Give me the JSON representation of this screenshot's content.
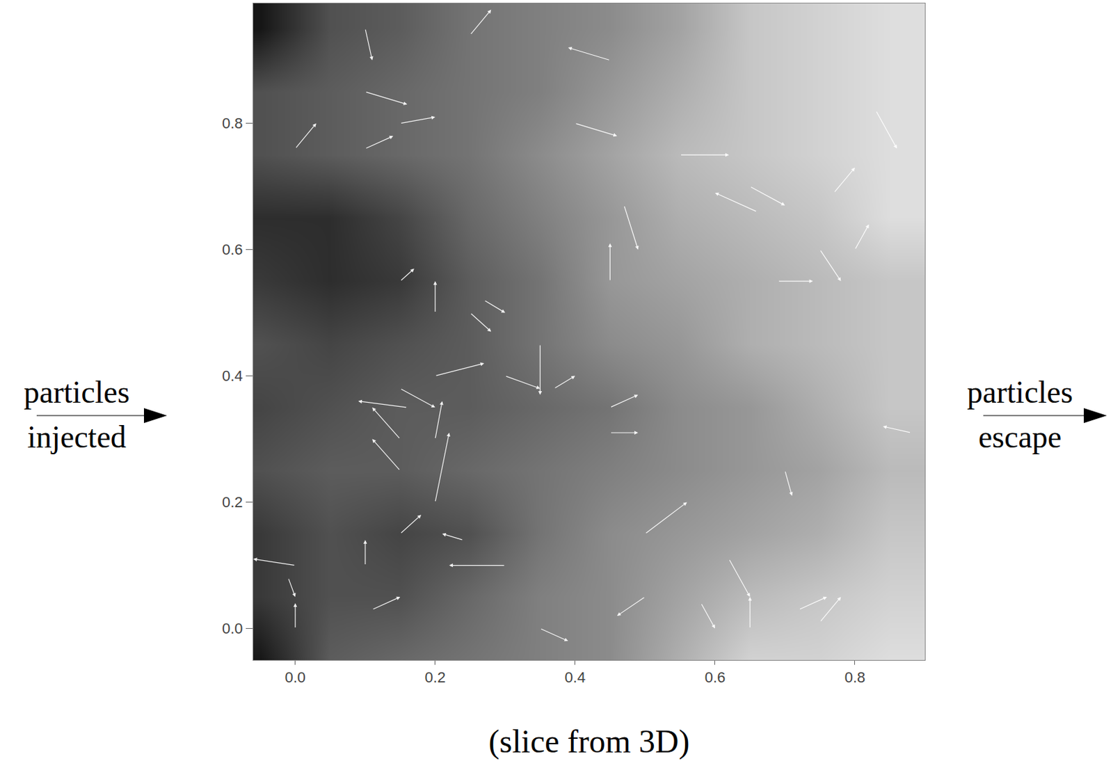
{
  "chart_data": {
    "type": "heatmap_quiver",
    "x": [
      -0.05,
      0.05,
      0.15,
      0.25,
      0.35,
      0.45,
      0.55,
      0.65,
      0.75,
      0.85
    ],
    "y": [
      -0.05,
      0.05,
      0.15,
      0.25,
      0.35,
      0.45,
      0.55,
      0.65,
      0.75,
      0.85,
      0.95
    ],
    "z": [
      [
        0.05,
        0.35,
        0.4,
        0.45,
        0.5,
        0.55,
        0.7,
        0.85,
        0.85,
        0.9
      ],
      [
        0.2,
        0.3,
        0.3,
        0.4,
        0.5,
        0.55,
        0.65,
        0.75,
        0.8,
        0.85
      ],
      [
        0.2,
        0.3,
        0.25,
        0.3,
        0.45,
        0.55,
        0.6,
        0.65,
        0.7,
        0.8
      ],
      [
        0.3,
        0.35,
        0.35,
        0.4,
        0.45,
        0.5,
        0.55,
        0.6,
        0.65,
        0.75
      ],
      [
        0.25,
        0.3,
        0.35,
        0.35,
        0.4,
        0.45,
        0.55,
        0.6,
        0.7,
        0.8
      ],
      [
        0.3,
        0.25,
        0.3,
        0.35,
        0.45,
        0.55,
        0.6,
        0.7,
        0.75,
        0.8
      ],
      [
        0.2,
        0.15,
        0.2,
        0.35,
        0.45,
        0.6,
        0.65,
        0.7,
        0.75,
        0.8
      ],
      [
        0.15,
        0.15,
        0.25,
        0.4,
        0.5,
        0.6,
        0.7,
        0.75,
        0.8,
        0.9
      ],
      [
        0.3,
        0.35,
        0.4,
        0.45,
        0.55,
        0.65,
        0.75,
        0.8,
        0.85,
        0.9
      ],
      [
        0.3,
        0.35,
        0.4,
        0.45,
        0.5,
        0.6,
        0.7,
        0.8,
        0.85,
        0.9
      ],
      [
        0.05,
        0.3,
        0.35,
        0.45,
        0.5,
        0.55,
        0.65,
        0.8,
        0.85,
        0.9
      ]
    ],
    "color_range": [
      0,
      1
    ],
    "xlim": [
      -0.06,
      0.9
    ],
    "ylim": [
      -0.05,
      0.99
    ],
    "xticks": [
      {
        "value": 0,
        "label": "0.0"
      },
      0.2,
      0.4,
      0.6,
      0.8
    ],
    "yticks": [
      {
        "value": 0,
        "label": "0.0"
      },
      0.2,
      0.4,
      0.6,
      0.8
    ],
    "arrows": [
      {
        "tail": [
          0.0,
          0.76
        ],
        "head": [
          0.03,
          0.8
        ]
      },
      {
        "tail": [
          0.1,
          0.76
        ],
        "head": [
          0.14,
          0.78
        ]
      },
      {
        "tail": [
          0.1,
          0.85
        ],
        "head": [
          0.16,
          0.83
        ]
      },
      {
        "tail": [
          0.15,
          0.8
        ],
        "head": [
          0.2,
          0.81
        ]
      },
      {
        "tail": [
          0.25,
          0.94
        ],
        "head": [
          0.28,
          0.98
        ]
      },
      {
        "tail": [
          0.4,
          0.8
        ],
        "head": [
          0.46,
          0.78
        ]
      },
      {
        "tail": [
          0.45,
          0.9
        ],
        "head": [
          0.39,
          0.92
        ]
      },
      {
        "tail": [
          0.55,
          0.75
        ],
        "head": [
          0.62,
          0.75
        ]
      },
      {
        "tail": [
          0.66,
          0.66
        ],
        "head": [
          0.6,
          0.69
        ]
      },
      {
        "tail": [
          0.65,
          0.7
        ],
        "head": [
          0.7,
          0.67
        ]
      },
      {
        "tail": [
          0.45,
          0.55
        ],
        "head": [
          0.45,
          0.61
        ]
      },
      {
        "tail": [
          0.47,
          0.67
        ],
        "head": [
          0.49,
          0.6
        ]
      },
      {
        "tail": [
          0.75,
          0.6
        ],
        "head": [
          0.78,
          0.55
        ]
      },
      {
        "tail": [
          0.69,
          0.55
        ],
        "head": [
          0.74,
          0.55
        ]
      },
      {
        "tail": [
          0.8,
          0.6
        ],
        "head": [
          0.82,
          0.64
        ]
      },
      {
        "tail": [
          0.2,
          0.5
        ],
        "head": [
          0.2,
          0.55
        ]
      },
      {
        "tail": [
          0.15,
          0.55
        ],
        "head": [
          0.17,
          0.57
        ]
      },
      {
        "tail": [
          0.25,
          0.5
        ],
        "head": [
          0.28,
          0.47
        ]
      },
      {
        "tail": [
          0.27,
          0.52
        ],
        "head": [
          0.3,
          0.5
        ]
      },
      {
        "tail": [
          0.35,
          0.45
        ],
        "head": [
          0.35,
          0.37
        ]
      },
      {
        "tail": [
          0.37,
          0.38
        ],
        "head": [
          0.4,
          0.4
        ]
      },
      {
        "tail": [
          0.3,
          0.4
        ],
        "head": [
          0.35,
          0.38
        ]
      },
      {
        "tail": [
          0.2,
          0.4
        ],
        "head": [
          0.27,
          0.42
        ]
      },
      {
        "tail": [
          0.15,
          0.38
        ],
        "head": [
          0.2,
          0.35
        ]
      },
      {
        "tail": [
          0.16,
          0.35
        ],
        "head": [
          0.09,
          0.36
        ]
      },
      {
        "tail": [
          0.15,
          0.3
        ],
        "head": [
          0.11,
          0.35
        ]
      },
      {
        "tail": [
          0.15,
          0.25
        ],
        "head": [
          0.11,
          0.3
        ]
      },
      {
        "tail": [
          0.2,
          0.3
        ],
        "head": [
          0.21,
          0.36
        ]
      },
      {
        "tail": [
          0.2,
          0.2
        ],
        "head": [
          0.22,
          0.31
        ]
      },
      {
        "tail": [
          0.15,
          0.15
        ],
        "head": [
          0.18,
          0.18
        ]
      },
      {
        "tail": [
          0.24,
          0.14
        ],
        "head": [
          0.21,
          0.15
        ]
      },
      {
        "tail": [
          0.3,
          0.1
        ],
        "head": [
          0.22,
          0.1
        ]
      },
      {
        "tail": [
          0.11,
          0.03
        ],
        "head": [
          0.15,
          0.05
        ]
      },
      {
        "tail": [
          0.0,
          0.0
        ],
        "head": [
          0.0,
          0.04
        ]
      },
      {
        "tail": [
          -0.01,
          0.08
        ],
        "head": [
          0.0,
          0.05
        ]
      },
      {
        "tail": [
          0.0,
          0.1
        ],
        "head": [
          -0.06,
          0.11
        ]
      },
      {
        "tail": [
          0.1,
          0.1
        ],
        "head": [
          0.1,
          0.14
        ]
      },
      {
        "tail": [
          0.1,
          0.95
        ],
        "head": [
          0.11,
          0.9
        ]
      },
      {
        "tail": [
          0.45,
          0.35
        ],
        "head": [
          0.49,
          0.37
        ]
      },
      {
        "tail": [
          0.45,
          0.31
        ],
        "head": [
          0.49,
          0.31
        ]
      },
      {
        "tail": [
          0.5,
          0.15
        ],
        "head": [
          0.56,
          0.2
        ]
      },
      {
        "tail": [
          0.62,
          0.11
        ],
        "head": [
          0.65,
          0.05
        ]
      },
      {
        "tail": [
          0.65,
          0.0
        ],
        "head": [
          0.65,
          0.05
        ]
      },
      {
        "tail": [
          0.58,
          0.04
        ],
        "head": [
          0.6,
          0.0
        ]
      },
      {
        "tail": [
          0.5,
          0.05
        ],
        "head": [
          0.46,
          0.02
        ]
      },
      {
        "tail": [
          0.7,
          0.25
        ],
        "head": [
          0.71,
          0.21
        ]
      },
      {
        "tail": [
          0.75,
          0.01
        ],
        "head": [
          0.78,
          0.05
        ]
      },
      {
        "tail": [
          0.72,
          0.03
        ],
        "head": [
          0.76,
          0.05
        ]
      },
      {
        "tail": [
          0.35,
          0.0
        ],
        "head": [
          0.39,
          -0.02
        ]
      },
      {
        "tail": [
          0.88,
          0.31
        ],
        "head": [
          0.84,
          0.32
        ]
      },
      {
        "tail": [
          0.83,
          0.82
        ],
        "head": [
          0.86,
          0.76
        ]
      },
      {
        "tail": [
          0.77,
          0.69
        ],
        "head": [
          0.8,
          0.73
        ]
      }
    ],
    "annotations": [
      {
        "text": "particles injected",
        "side": "left"
      },
      {
        "text": "particles escape",
        "side": "right"
      },
      {
        "text": "(slice from 3D)",
        "side": "bottom"
      }
    ]
  }
}
